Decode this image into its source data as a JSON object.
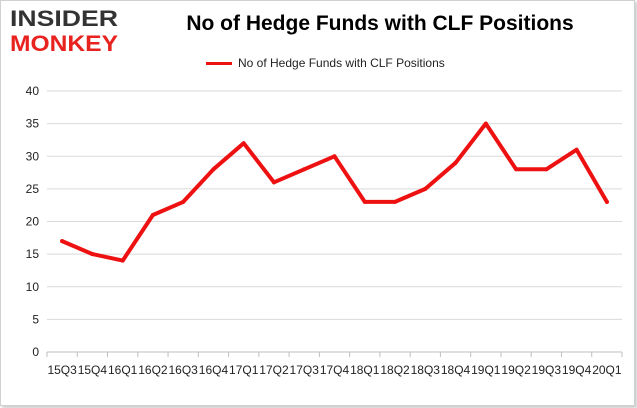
{
  "brand": {
    "logo_line1": "INSIDER",
    "logo_line2": "MONKEY",
    "logo_color_top": "#333333",
    "logo_color_bottom": "#e8231f"
  },
  "chart_data": {
    "type": "line",
    "title": "No of Hedge Funds with CLF Positions",
    "xlabel": "",
    "ylabel": "",
    "categories": [
      "2015Q3",
      "2015Q4",
      "2016Q1",
      "2016Q2",
      "2016Q3",
      "2016Q4",
      "2017Q1",
      "2017Q2",
      "2017Q3",
      "2017Q4",
      "2018Q1",
      "2018Q2",
      "2018Q3",
      "2018Q4",
      "2019Q1",
      "2019Q2",
      "2019Q3",
      "2019Q4",
      "2020Q1"
    ],
    "tick_labels": [
      "15Q3",
      "15Q4",
      "16Q1",
      "16Q2",
      "16Q3",
      "16Q4",
      "17Q1",
      "17Q2",
      "17Q3",
      "17Q4",
      "18Q1",
      "18Q2",
      "18Q3",
      "18Q4",
      "19Q1",
      "19Q2",
      "19Q3",
      "19Q4",
      "20Q1"
    ],
    "series": [
      {
        "name": "No of Hedge Funds with CLF Positions",
        "color": "#ee1111",
        "values": [
          17,
          15,
          14,
          21,
          23,
          28,
          32,
          26,
          28,
          30,
          23,
          23,
          25,
          29,
          35,
          28,
          28,
          31,
          23
        ]
      }
    ],
    "ylim": [
      0,
      40
    ],
    "yticks": [
      0,
      5,
      10,
      15,
      20,
      25,
      30,
      35,
      40
    ],
    "grid": "horizontal",
    "legend": "top-center"
  }
}
